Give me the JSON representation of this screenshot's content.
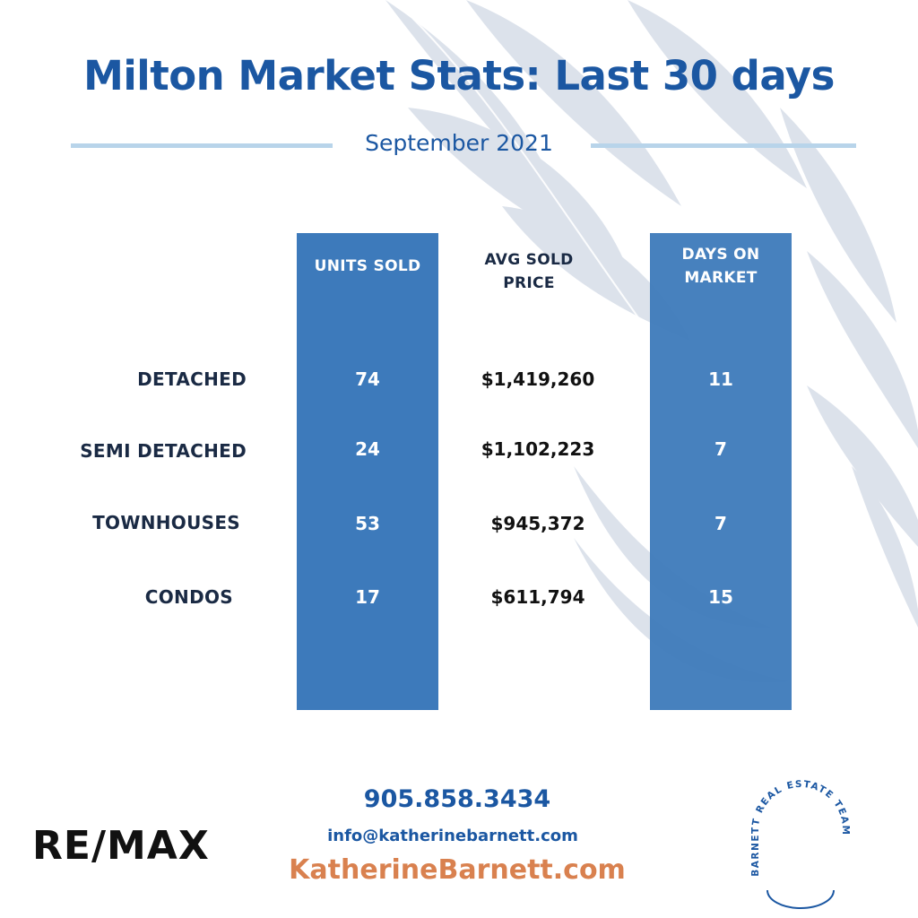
{
  "title": "Milton Market Stats: Last 30 days",
  "subtitle": "September 2021",
  "columns": {
    "units": "UNITS SOLD",
    "price_line1": "AVG SOLD",
    "price_line2": "PRICE",
    "days_line1": "DAYS ON",
    "days_line2": "MARKET"
  },
  "rows": [
    {
      "label": "DETACHED",
      "units": "74",
      "price": "$1,419,260",
      "days": "11"
    },
    {
      "label": "SEMI DETACHED",
      "units": "24",
      "price": "$1,102,223",
      "days": "7"
    },
    {
      "label": "TOWNHOUSES",
      "units": "53",
      "price": "$945,372",
      "days": "7"
    },
    {
      "label": "CONDOS",
      "units": "17",
      "price": "$611,794",
      "days": "15"
    }
  ],
  "contact": {
    "phone": "905.858.3434",
    "email": "info@katherinebarnett.com",
    "website": "KatherineBarnett.com"
  },
  "logos": {
    "remax": "RE/MAX",
    "team_badge": "BARNETT REAL ESTATE TEAM"
  },
  "colors": {
    "brand_blue": "#1b57a2",
    "column_blue": "#3d7abb",
    "accent_orange": "#d9814f",
    "rule_light_blue": "#b8d4ea"
  }
}
